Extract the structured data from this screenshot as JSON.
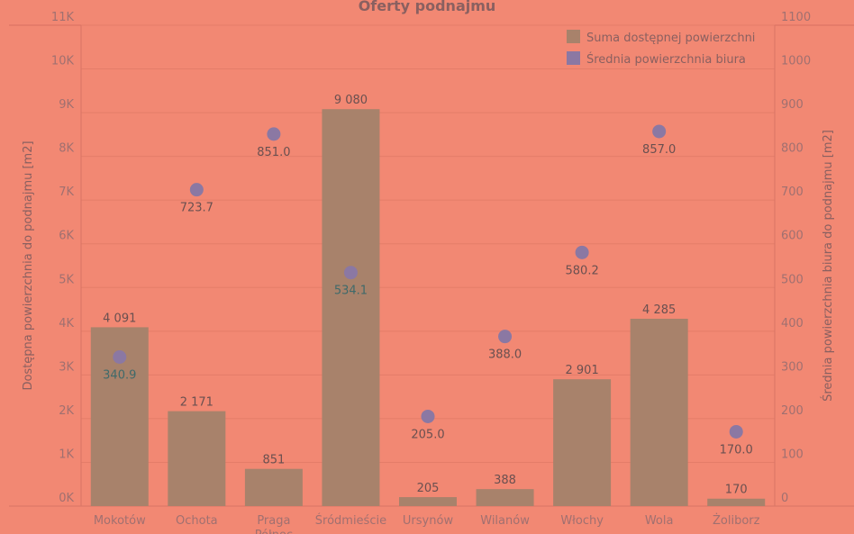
{
  "chart_data": {
    "type": "bar+scatter",
    "title": "Oferty podnajmu",
    "categories": [
      "Mokotów",
      "Ochota",
      "Praga Północ",
      "Śródmieście",
      "Ursynów",
      "Wilanów",
      "Włochy",
      "Wola",
      "Żoliborz"
    ],
    "series": [
      {
        "name": "Suma dostępnej powierzchni",
        "type": "bar",
        "axis": "left",
        "color": "#a8826b",
        "values": [
          4091,
          2171,
          851,
          9080,
          205,
          388,
          2901,
          4285,
          170
        ],
        "labels": [
          "4 091",
          "2 171",
          "851",
          "9 080",
          "205",
          "388",
          "2 901",
          "4 285",
          "170"
        ]
      },
      {
        "name": "Średnia powierzchnia biura",
        "type": "scatter",
        "axis": "right",
        "color": "#8b78a3",
        "values": [
          340.9,
          723.7,
          851.0,
          534.1,
          205.0,
          388.0,
          580.2,
          857.0,
          170.0
        ],
        "labels": [
          "340.9",
          "723.7",
          "851.0",
          "534.1",
          "205.0",
          "388.0",
          "580.2",
          "857.0",
          "170.0"
        ]
      }
    ],
    "ylabel": "Dostępna powierzchnia do podnajmu [m2]",
    "y2label": "Średnia powierzchnia biura do podnajmu [m2]",
    "ylim": [
      0,
      11000
    ],
    "y2lim": [
      0,
      1100
    ],
    "yticks": [
      "0K",
      "1K",
      "2K",
      "3K",
      "4K",
      "5K",
      "6K",
      "7K",
      "8K",
      "9K",
      "10K",
      "11K"
    ],
    "y2ticks": [
      "0",
      "100",
      "200",
      "300",
      "400",
      "500",
      "600",
      "700",
      "800",
      "900",
      "1000",
      "1100"
    ],
    "legend": "top-right",
    "grid": true
  }
}
